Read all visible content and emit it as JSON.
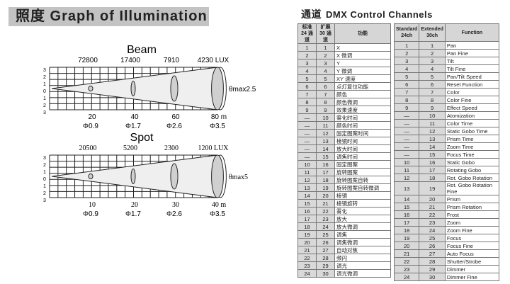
{
  "title": "照度 Graph of Illumination",
  "channels_title_cn": "通道",
  "channels_title": "DMX Control Channels",
  "beam": {
    "label": "Beam",
    "lux": [
      "72800",
      "17400",
      "7910",
      "4230 LUX"
    ],
    "distances": [
      "20",
      "40",
      "60",
      "80 m"
    ],
    "diameters": [
      "Φ0.9",
      "Φ1.7",
      "Φ2.6",
      "Φ3.5"
    ],
    "angle": "θmax2.5"
  },
  "spot": {
    "label": "Spot",
    "lux": [
      "20500",
      "5200",
      "2300",
      "1200 LUX"
    ],
    "distances": [
      "10",
      "20",
      "30",
      "40 m"
    ],
    "diameters": [
      "Φ0.9",
      "Φ1.7",
      "Φ2.6",
      "Φ3.5"
    ],
    "angle": "θmax5"
  },
  "grid_ticks": [
    "3",
    "2",
    "1",
    "0",
    "1",
    "2",
    "3"
  ],
  "table_cn": {
    "headers": [
      "标准 24 通道",
      "扩展 30 通道",
      "功能"
    ],
    "rows": [
      [
        "1",
        "1",
        "X"
      ],
      [
        "2",
        "2",
        "X 微调"
      ],
      [
        "3",
        "3",
        "Y"
      ],
      [
        "4",
        "4",
        "Y 微调"
      ],
      [
        "5",
        "5",
        "XY 速度"
      ],
      [
        "6",
        "6",
        "点灯复位功能"
      ],
      [
        "7",
        "7",
        "颜色"
      ],
      [
        "8",
        "8",
        "颜色微调"
      ],
      [
        "9",
        "9",
        "效果速度"
      ],
      [
        "—",
        "10",
        "雾化时间"
      ],
      [
        "—",
        "11",
        "颜色时间"
      ],
      [
        "—",
        "12",
        "固定图案时间"
      ],
      [
        "—",
        "13",
        "棱镜时间"
      ],
      [
        "—",
        "14",
        "放大时间"
      ],
      [
        "—",
        "15",
        "调焦时间"
      ],
      [
        "10",
        "16",
        "固定图案"
      ],
      [
        "11",
        "17",
        "旋转图案"
      ],
      [
        "12",
        "18",
        "旋转图案自转"
      ],
      [
        "13",
        "19",
        "旋转图案自转微调"
      ],
      [
        "14",
        "20",
        "棱镜"
      ],
      [
        "15",
        "21",
        "棱镜旋转"
      ],
      [
        "16",
        "22",
        "雾化"
      ],
      [
        "17",
        "23",
        "放大"
      ],
      [
        "18",
        "24",
        "放大微调"
      ],
      [
        "19",
        "25",
        "调焦"
      ],
      [
        "20",
        "26",
        "调焦微调"
      ],
      [
        "21",
        "27",
        "自动对焦"
      ],
      [
        "22",
        "28",
        "频闪"
      ],
      [
        "23",
        "29",
        "调光"
      ],
      [
        "24",
        "30",
        "调光微调"
      ]
    ]
  },
  "table_en": {
    "headers": [
      "Standard 24ch",
      "Extended 30ch",
      "Function"
    ],
    "rows": [
      [
        "1",
        "1",
        "Pan"
      ],
      [
        "2",
        "2",
        "Pan Fine"
      ],
      [
        "3",
        "3",
        "Tilt"
      ],
      [
        "4",
        "4",
        "Tilt Fine"
      ],
      [
        "5",
        "5",
        "Pan/Tilt Speed"
      ],
      [
        "6",
        "6",
        "Reset Function"
      ],
      [
        "7",
        "7",
        "Color"
      ],
      [
        "8",
        "8",
        "Color Fine"
      ],
      [
        "9",
        "9",
        "Effect Speed"
      ],
      [
        "—",
        "10",
        "Atomization"
      ],
      [
        "—",
        "11",
        "Color Time"
      ],
      [
        "—",
        "12",
        "Static Gobo Time"
      ],
      [
        "—",
        "13",
        "Prism Time"
      ],
      [
        "—",
        "14",
        "Zoom Time"
      ],
      [
        "—",
        "15",
        "Focus Time"
      ],
      [
        "10",
        "16",
        "Static Gobo"
      ],
      [
        "11",
        "17",
        "Rotating Gobo"
      ],
      [
        "12",
        "18",
        "Rot. Gobo Rotation"
      ],
      [
        "13",
        "19",
        "Rot. Gobo Rotation Fine"
      ],
      [
        "14",
        "20",
        "Prism"
      ],
      [
        "15",
        "21",
        "Prism Rotation"
      ],
      [
        "16",
        "22",
        "Frost"
      ],
      [
        "17",
        "23",
        "Zoom"
      ],
      [
        "18",
        "24",
        "Zoom Fine"
      ],
      [
        "19",
        "25",
        "Focus"
      ],
      [
        "20",
        "26",
        "Focus Fine"
      ],
      [
        "21",
        "27",
        "Auto Focus"
      ],
      [
        "22",
        "28",
        "Shutter/Strobe"
      ],
      [
        "23",
        "29",
        "Dimmer"
      ],
      [
        "24",
        "30",
        "Dimmer Fine"
      ]
    ]
  }
}
